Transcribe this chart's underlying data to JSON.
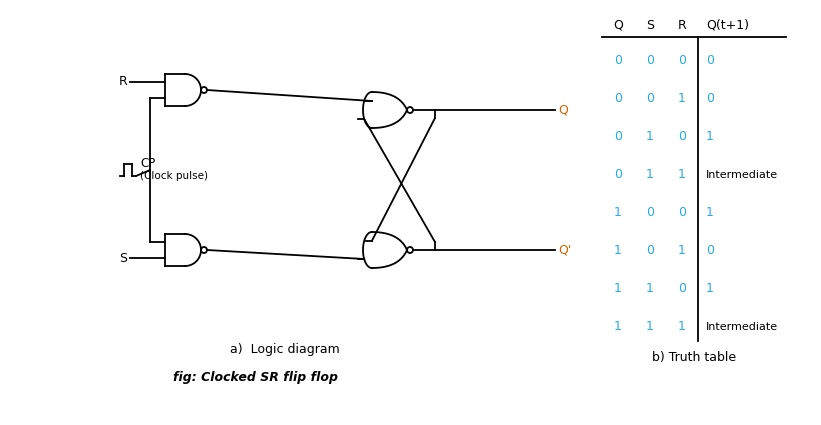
{
  "caption_a": "a)  Logic diagram",
  "caption_fig": "fig: Clocked SR flip flop",
  "caption_b": "b) Truth table",
  "table_headers": [
    "Q",
    "S",
    "R",
    "Q(t+1)"
  ],
  "table_rows": [
    [
      "0",
      "0",
      "0",
      "0"
    ],
    [
      "0",
      "0",
      "1",
      "0"
    ],
    [
      "0",
      "1",
      "0",
      "1"
    ],
    [
      "0",
      "1",
      "1",
      "Intermediate"
    ],
    [
      "1",
      "0",
      "0",
      "1"
    ],
    [
      "1",
      "0",
      "1",
      "0"
    ],
    [
      "1",
      "1",
      "0",
      "1"
    ],
    [
      "1",
      "1",
      "1",
      "Intermediate"
    ]
  ],
  "label_R": "R",
  "label_S": "S",
  "label_CP": "CP",
  "label_CP2": "(Clock pulse)",
  "label_Q": "Q",
  "label_Qp": "Q'",
  "line_color": "#000000",
  "text_color": "#000000",
  "table_val_color": "#29abe2",
  "bg_color": "#ffffff",
  "lw": 1.3
}
